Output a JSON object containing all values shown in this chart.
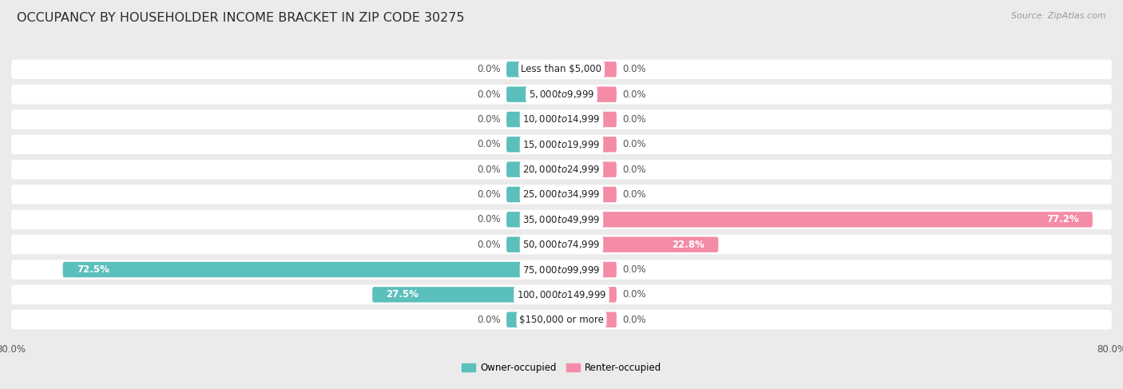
{
  "title": "OCCUPANCY BY HOUSEHOLDER INCOME BRACKET IN ZIP CODE 30275",
  "source": "Source: ZipAtlas.com",
  "categories": [
    "Less than $5,000",
    "$5,000 to $9,999",
    "$10,000 to $14,999",
    "$15,000 to $19,999",
    "$20,000 to $24,999",
    "$25,000 to $34,999",
    "$35,000 to $49,999",
    "$50,000 to $74,999",
    "$75,000 to $99,999",
    "$100,000 to $149,999",
    "$150,000 or more"
  ],
  "owner_values": [
    0.0,
    0.0,
    0.0,
    0.0,
    0.0,
    0.0,
    0.0,
    0.0,
    72.5,
    27.5,
    0.0
  ],
  "renter_values": [
    0.0,
    0.0,
    0.0,
    0.0,
    0.0,
    0.0,
    77.2,
    22.8,
    0.0,
    0.0,
    0.0
  ],
  "owner_color": "#5bbfbc",
  "renter_color": "#f48ca7",
  "axis_limit": 80.0,
  "stub_size": 8.0,
  "bg_color": "#ebebeb",
  "bar_bg_color": "#ffffff",
  "row_bg_color": "#f5f5f5",
  "label_color": "#555555",
  "title_color": "#2a2a2a",
  "bar_height": 0.62,
  "label_fontsize": 8.5,
  "title_fontsize": 11.5,
  "source_fontsize": 8.0,
  "cat_label_fontsize": 8.5
}
